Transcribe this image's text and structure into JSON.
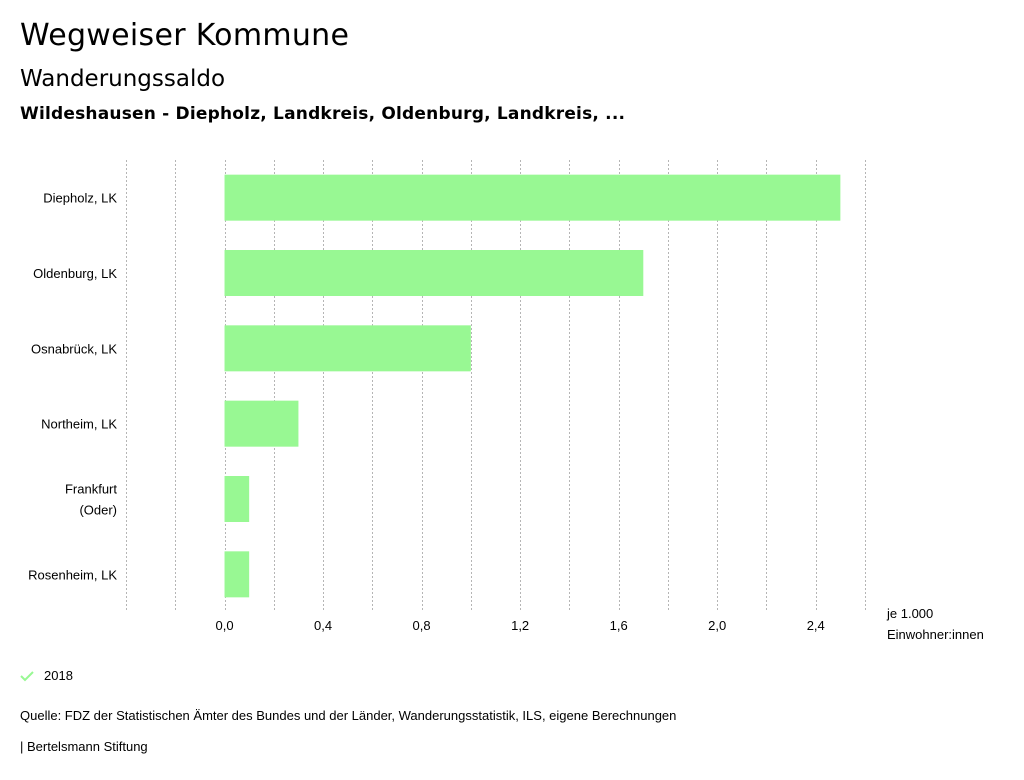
{
  "header": {
    "title": "Wegweiser Kommune",
    "subtitle": "Wanderungssaldo",
    "region": "Wildeshausen - Diepholz, Landkreis, Oldenburg, Landkreis, ..."
  },
  "chart_data": {
    "type": "bar",
    "orientation": "horizontal",
    "categories": [
      "Diepholz, LK",
      "Oldenburg, LK",
      "Osnabrück, LK",
      "Northeim, LK",
      "Frankfurt (Oder)",
      "Rosenheim, LK"
    ],
    "category_lines": [
      [
        "Diepholz, LK"
      ],
      [
        "Oldenburg, LK"
      ],
      [
        "Osnabrück, LK"
      ],
      [
        "Northeim, LK"
      ],
      [
        "Frankfurt",
        "(Oder)"
      ],
      [
        "Rosenheim, LK"
      ]
    ],
    "series": [
      {
        "name": "2018",
        "values": [
          2.5,
          1.7,
          1.0,
          0.3,
          0.1,
          0.1
        ]
      }
    ],
    "xlim": [
      -0.4,
      2.6
    ],
    "x_ticks": [
      0.0,
      0.4,
      0.8,
      1.2,
      1.6,
      2.0,
      2.4
    ],
    "x_tick_labels": [
      "0,0",
      "0,4",
      "0,8",
      "1,2",
      "1,6",
      "2,0",
      "2,4"
    ],
    "x_grid_step": 0.2,
    "unit_label": [
      "je 1.000",
      "Einwohner:innen"
    ],
    "bar_color": "#98f893",
    "grid": true
  },
  "legend": {
    "label": "2018",
    "color": "#98f893"
  },
  "footer": {
    "source": "Quelle: FDZ der Statistischen Ämter des Bundes und der Länder, Wanderungsstatistik, ILS, eigene Berechnungen",
    "credit": "| Bertelsmann Stiftung"
  }
}
